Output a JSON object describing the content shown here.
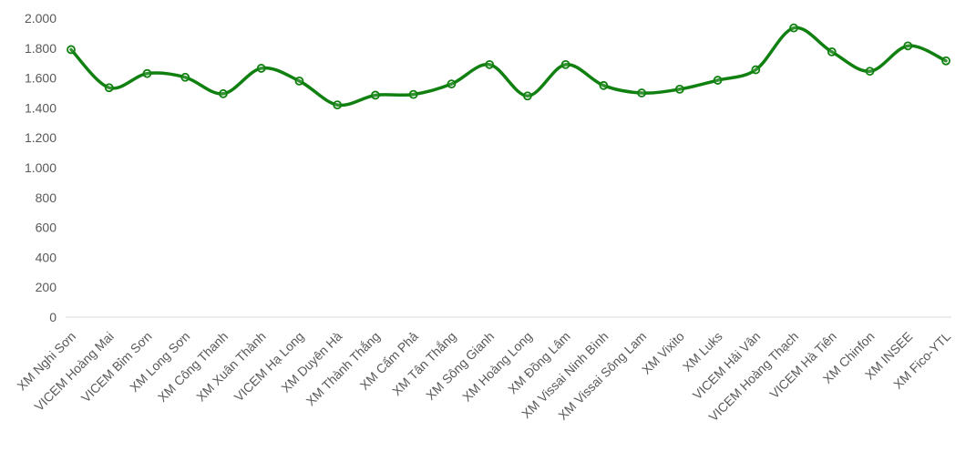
{
  "chart_data": {
    "type": "line",
    "smooth": true,
    "title": "",
    "xlabel": "",
    "ylabel": "",
    "ylim": [
      0,
      2000
    ],
    "yticks": [
      0,
      200,
      400,
      600,
      800,
      1000,
      1200,
      1400,
      1600,
      1800,
      2000
    ],
    "ytick_labels": [
      "0",
      "200",
      "400",
      "600",
      "800",
      "1.000",
      "1.200",
      "1.400",
      "1.600",
      "1.800",
      "2.000"
    ],
    "grid": false,
    "legend": "none",
    "line_color": "#108010",
    "categories": [
      "XM Nghi Sơn",
      "VICEM Hoàng Mai",
      "VICEM Bỉm Sơn",
      "XM Long Sơn",
      "XM Công Thanh",
      "XM Xuân Thành",
      "VICEM Hạ Long",
      "XM Duyên Hà",
      "XM Thành Thắng",
      "XM Cẩm Phả",
      "XM Tân Thắng",
      "XM Sông Gianh",
      "XM Hoàng Long",
      "XM Đồng Lâm",
      "XM Vissai Ninh Bình",
      "XM Vissai Sông Lam",
      "XM Vixito",
      "XM Luks",
      "VICEM Hải Vân",
      "VICEM Hoàng Thạch",
      "VICEM Hà Tiên",
      "XM Chinfon",
      "XM INSEE",
      "XM Fico-YTL"
    ],
    "series": [
      {
        "values": [
          1790,
          1535,
          1630,
          1605,
          1495,
          1665,
          1580,
          1420,
          1485,
          1490,
          1560,
          1690,
          1480,
          1690,
          1550,
          1500,
          1525,
          1585,
          1655,
          1935,
          1775,
          1645,
          1815,
          1715
        ]
      }
    ]
  }
}
